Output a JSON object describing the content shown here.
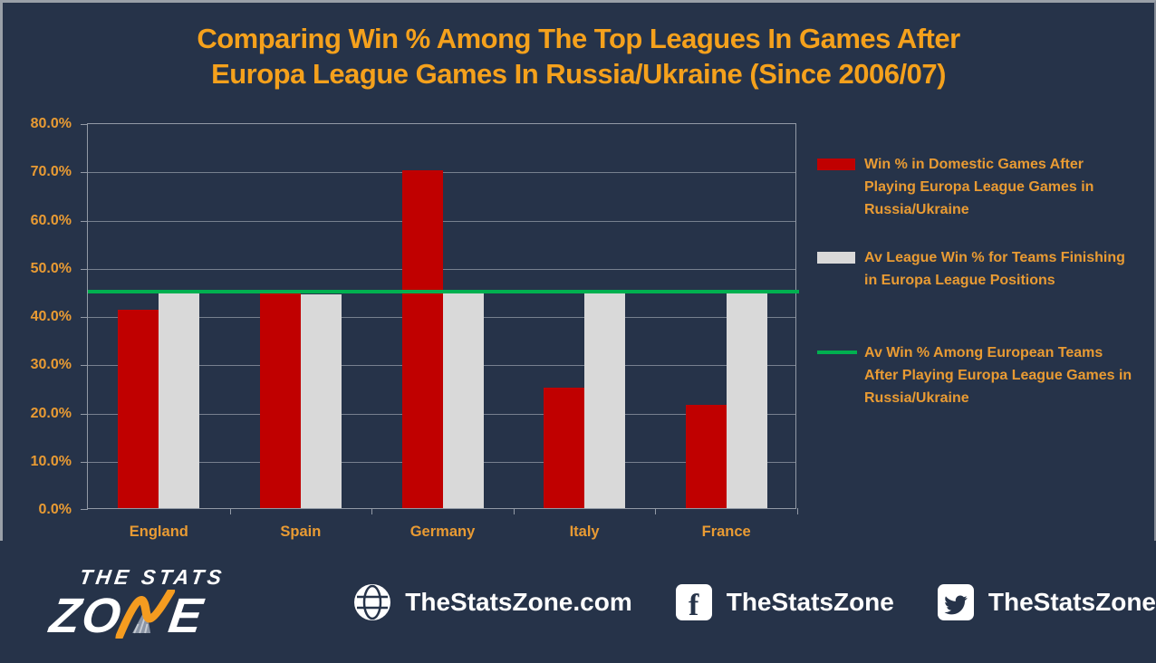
{
  "title": {
    "line1": "Comparing Win % Among The Top Leagues In Games After",
    "line2": "Europa League Games In Russia/Ukraine (Since 2006/07)"
  },
  "chart_data": {
    "type": "bar",
    "categories": [
      "England",
      "Spain",
      "Germany",
      "Italy",
      "France"
    ],
    "series": [
      {
        "name": "Win % in Domestic Games After Playing Europa League Games in Russia/Ukraine",
        "color": "#c00000",
        "values": [
          41.2,
          44.8,
          70.0,
          25.0,
          21.5
        ]
      },
      {
        "name": "Av League Win % for Teams Finishing in Europa League Positions",
        "color": "#d9d9d9",
        "values": [
          44.8,
          44.3,
          44.9,
          44.9,
          44.9
        ]
      }
    ],
    "reference_line": {
      "name": "Av Win % Among European Teams After Playing Europa League Games in Russia/Ukraine",
      "color": "#00b050",
      "value": 45.2
    },
    "ylim": [
      0,
      80
    ],
    "ytick_step": 10,
    "ytick_labels": [
      "0.0%",
      "10.0%",
      "20.0%",
      "30.0%",
      "40.0%",
      "50.0%",
      "60.0%",
      "70.0%",
      "80.0%"
    ],
    "grid": true,
    "legend_position": "right"
  },
  "legend": {
    "items": [
      {
        "swatch": "bar",
        "color": "#c00000",
        "text": "Win % in Domestic Games After Playing Europa League Games in Russia/Ukraine"
      },
      {
        "swatch": "bar",
        "color": "#d9d9d9",
        "text": "Av League Win % for Teams Finishing in Europa League Positions"
      },
      {
        "swatch": "line",
        "color": "#00b050",
        "text": "Av Win % Among European Teams After Playing Europa League Games in Russia/Ukraine"
      }
    ]
  },
  "footer": {
    "logo": {
      "line1": "THE STATS",
      "line2_left": "ZO",
      "line2_right": "E"
    },
    "links": [
      {
        "icon": "globe-icon",
        "label": "TheStatsZone.com"
      },
      {
        "icon": "facebook-icon",
        "label": "TheStatsZone"
      },
      {
        "icon": "twitter-icon",
        "label": "TheStatsZone"
      }
    ]
  },
  "colors": {
    "background": "#263349",
    "title_orange": "#f5a11c",
    "label_orange": "#e99b33",
    "bar_red": "#c00000",
    "bar_gray": "#d9d9d9",
    "line_green": "#00b050",
    "gridline": "#77808f",
    "axis_border": "#929aa6",
    "footer_text": "#ffffff",
    "logo_orange": "#f59c20"
  }
}
